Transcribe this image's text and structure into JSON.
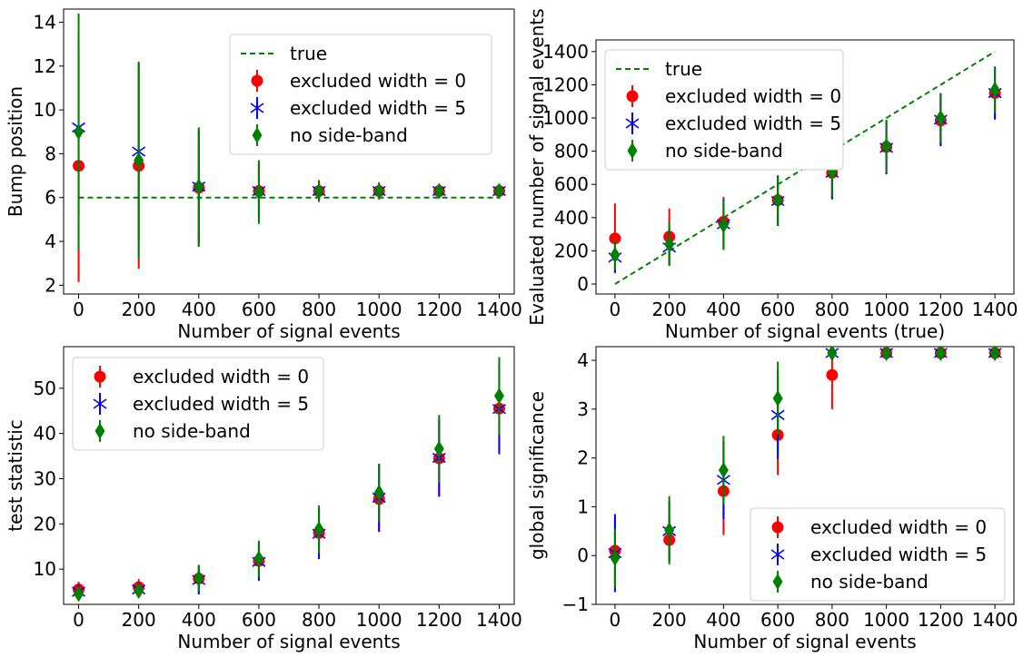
{
  "chart_data": [
    {
      "type": "scatter",
      "panel": "top-left",
      "xlabel": "Number of signal events",
      "ylabel": "Bump position",
      "x": [
        0,
        200,
        400,
        600,
        800,
        1000,
        1200,
        1400
      ],
      "xlim": [
        -50,
        1450
      ],
      "ylim": [
        1.6,
        14.6
      ],
      "xticks": [
        0,
        200,
        400,
        600,
        800,
        1000,
        1200,
        1400
      ],
      "yticks": [
        2,
        4,
        6,
        8,
        10,
        12,
        14
      ],
      "grid": false,
      "legend_position": "top-right",
      "true_line": {
        "name": "true",
        "color": "#008000",
        "points": [
          [
            0,
            6
          ],
          [
            1400,
            6
          ]
        ]
      },
      "series": [
        {
          "name": "excluded width = 0",
          "marker": "circle",
          "color": "#ff0000",
          "y": [
            7.45,
            7.45,
            6.45,
            6.3,
            6.3,
            6.3,
            6.3,
            6.3
          ],
          "err_low": [
            5.3,
            4.7,
            2.7,
            1.4,
            0.5,
            0.4,
            0.3,
            0.3
          ],
          "err_high": [
            5.3,
            4.7,
            2.7,
            1.4,
            0.5,
            0.4,
            0.3,
            0.3
          ]
        },
        {
          "name": "excluded width = 5",
          "marker": "asterisk",
          "color": "#0000ff",
          "y": [
            9.2,
            8.1,
            6.5,
            6.3,
            6.3,
            6.3,
            6.3,
            6.3
          ],
          "err_low": [
            4.0,
            4.0,
            2.5,
            1.2,
            0.4,
            0.3,
            0.3,
            0.3
          ],
          "err_high": [
            4.0,
            4.0,
            2.5,
            1.2,
            0.4,
            0.3,
            0.3,
            0.3
          ]
        },
        {
          "name": "no side-band",
          "marker": "diamond",
          "color": "#008000",
          "y": [
            9.0,
            7.7,
            6.5,
            6.25,
            6.3,
            6.3,
            6.3,
            6.3
          ],
          "err_low": [
            5.4,
            4.5,
            2.7,
            1.45,
            0.45,
            0.35,
            0.3,
            0.3
          ],
          "err_high": [
            5.4,
            4.5,
            2.7,
            1.45,
            0.45,
            0.35,
            0.3,
            0.3
          ]
        }
      ]
    },
    {
      "type": "scatter",
      "panel": "top-right",
      "xlabel": "Number of signal events (true)",
      "ylabel": "Evaluated number of signal events",
      "x": [
        0,
        200,
        400,
        600,
        800,
        1000,
        1200,
        1400
      ],
      "xlim": [
        -70,
        1470
      ],
      "ylim": [
        -60,
        1470
      ],
      "xticks": [
        0,
        200,
        400,
        600,
        800,
        1000,
        1200,
        1400
      ],
      "yticks": [
        0,
        200,
        400,
        600,
        800,
        1000,
        1200,
        1400
      ],
      "grid": false,
      "legend_position": "top-left",
      "true_line": {
        "name": "true",
        "color": "#008000",
        "points": [
          [
            0,
            0
          ],
          [
            1400,
            1400
          ]
        ]
      },
      "series": [
        {
          "name": "excluded width = 0",
          "marker": "circle",
          "color": "#ff0000",
          "y": [
            275,
            285,
            375,
            505,
            670,
            825,
            985,
            1150
          ],
          "err_low": [
            210,
            170,
            150,
            150,
            150,
            160,
            150,
            150
          ],
          "err_high": [
            210,
            170,
            150,
            150,
            150,
            160,
            150,
            150
          ]
        },
        {
          "name": "excluded width = 5",
          "marker": "asterisk",
          "color": "#0000ff",
          "y": [
            160,
            220,
            360,
            500,
            670,
            820,
            990,
            1150
          ],
          "err_low": [
            90,
            110,
            150,
            150,
            160,
            160,
            160,
            160
          ],
          "err_high": [
            90,
            110,
            150,
            150,
            160,
            160,
            160,
            160
          ]
        },
        {
          "name": "no side-band",
          "marker": "diamond",
          "color": "#008000",
          "y": [
            175,
            240,
            355,
            505,
            675,
            830,
            1000,
            1170
          ],
          "err_low": [
            90,
            130,
            150,
            150,
            150,
            160,
            150,
            140
          ],
          "err_high": [
            90,
            130,
            150,
            150,
            150,
            160,
            150,
            140
          ]
        }
      ]
    },
    {
      "type": "scatter",
      "panel": "bottom-left",
      "xlabel": "Number of signal events",
      "ylabel": "test statistic",
      "x": [
        0,
        200,
        400,
        600,
        800,
        1000,
        1200,
        1400
      ],
      "xlim": [
        -50,
        1450
      ],
      "ylim": [
        2.2,
        59.2
      ],
      "xticks": [
        0,
        200,
        400,
        600,
        800,
        1000,
        1200,
        1400
      ],
      "yticks": [
        10,
        20,
        30,
        40,
        50
      ],
      "grid": false,
      "legend_position": "top-left",
      "series": [
        {
          "name": "excluded width = 0",
          "marker": "circle",
          "color": "#ff0000",
          "y": [
            5.5,
            6.0,
            7.9,
            11.8,
            18.0,
            25.5,
            34.5,
            45.5
          ],
          "err_low": [
            1.7,
            1.8,
            3.0,
            4.2,
            5.5,
            7.3,
            8.5,
            9.8
          ],
          "err_high": [
            1.7,
            1.8,
            3.0,
            4.2,
            5.5,
            7.3,
            8.5,
            9.8
          ]
        },
        {
          "name": "excluded width = 5",
          "marker": "asterisk",
          "color": "#0000ff",
          "y": [
            5.0,
            5.5,
            7.6,
            11.6,
            17.8,
            25.8,
            34.6,
            45.4
          ],
          "err_low": [
            1.5,
            1.5,
            3.2,
            4.2,
            5.6,
            7.5,
            8.6,
            10.0
          ],
          "err_high": [
            1.5,
            1.5,
            3.2,
            4.2,
            5.6,
            7.5,
            8.6,
            10.0
          ]
        },
        {
          "name": "no side-band",
          "marker": "diamond",
          "color": "#008000",
          "y": [
            4.5,
            5.2,
            8.0,
            12.3,
            18.8,
            26.9,
            36.6,
            48.3
          ],
          "err_low": [
            1.5,
            1.6,
            2.9,
            4.0,
            5.3,
            6.4,
            7.5,
            8.6
          ],
          "err_high": [
            1.5,
            1.6,
            2.9,
            4.0,
            5.3,
            6.4,
            7.5,
            8.6
          ]
        }
      ]
    },
    {
      "type": "scatter",
      "panel": "bottom-right",
      "xlabel": "Number of signal events",
      "ylabel": "global significance",
      "x": [
        0,
        200,
        400,
        600,
        800,
        1000,
        1200,
        1400
      ],
      "xlim": [
        -70,
        1470
      ],
      "ylim": [
        -1,
        4.28
      ],
      "xticks": [
        0,
        200,
        400,
        600,
        800,
        1000,
        1200,
        1400
      ],
      "yticks": [
        -1,
        0,
        1,
        2,
        3,
        4
      ],
      "grid": false,
      "legend_position": "bottom-right",
      "series": [
        {
          "name": "excluded width = 0",
          "marker": "circle",
          "color": "#ff0000",
          "y": [
            0.1,
            0.32,
            1.32,
            2.47,
            3.7,
            4.15,
            4.15,
            4.15
          ],
          "err_low": [
            0.65,
            0.48,
            0.9,
            0.82,
            0.7,
            0.06,
            0.05,
            0.05
          ],
          "err_high": [
            0.65,
            0.48,
            0.9,
            0.82,
            0.7,
            0.06,
            0.05,
            0.05
          ]
        },
        {
          "name": "excluded width = 5",
          "marker": "asterisk",
          "color": "#0000ff",
          "y": [
            0.05,
            0.5,
            1.55,
            2.88,
            4.15,
            4.15,
            4.15,
            4.15
          ],
          "err_low": [
            0.8,
            0.6,
            0.8,
            0.9,
            0.1,
            0.05,
            0.05,
            0.05
          ],
          "err_high": [
            0.8,
            0.6,
            0.8,
            0.9,
            0.1,
            0.05,
            0.05,
            0.05
          ]
        },
        {
          "name": "no side-band",
          "marker": "diamond",
          "color": "#008000",
          "y": [
            -0.05,
            0.52,
            1.75,
            3.22,
            4.15,
            4.15,
            4.15,
            4.15
          ],
          "err_low": [
            0.6,
            0.7,
            0.7,
            0.75,
            0.1,
            0.05,
            0.05,
            0.05
          ],
          "err_high": [
            0.6,
            0.7,
            0.7,
            0.75,
            0.1,
            0.05,
            0.05,
            0.05
          ]
        }
      ]
    }
  ]
}
